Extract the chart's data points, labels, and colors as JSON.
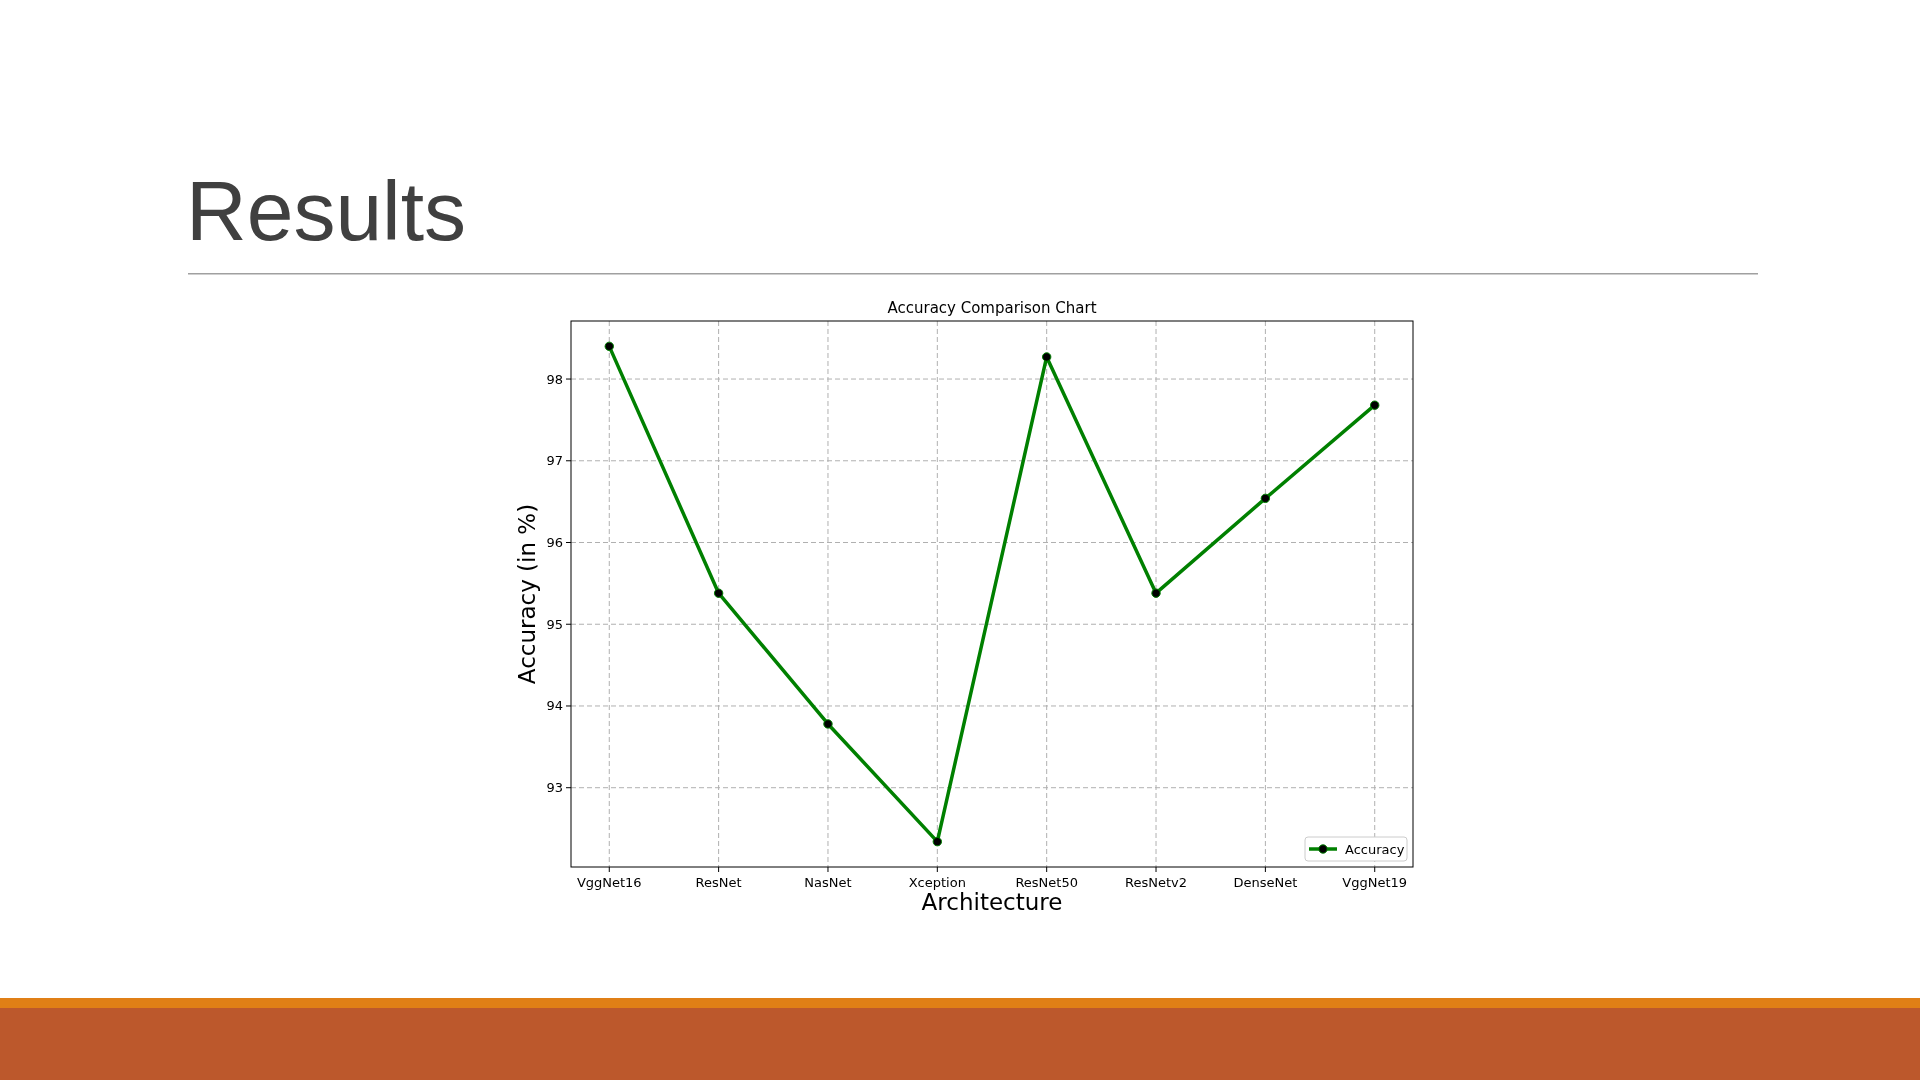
{
  "chart_data": {
    "type": "line",
    "title": "Results",
    "subtitle": "Accuracy Comparison Chart",
    "xlabel": "Architecture",
    "ylabel": "Accuracy (in %)",
    "categories": [
      "VggNet16",
      "ResNet",
      "NasNet",
      "Xception",
      "ResNet50",
      "ResNetv2",
      "DenseNet",
      "VggNet19"
    ],
    "series": [
      {
        "name": "Accuracy",
        "color": "#008000",
        "values": [
          98.4,
          95.38,
          93.78,
          92.34,
          98.27,
          95.38,
          96.54,
          97.68
        ]
      }
    ],
    "ylim": [
      92.03,
      98.71
    ],
    "yticks": [
      93,
      94,
      95,
      96,
      97,
      98
    ],
    "grid": true,
    "legend": "bottom right",
    "marker": "circle",
    "line_style": "solid"
  }
}
